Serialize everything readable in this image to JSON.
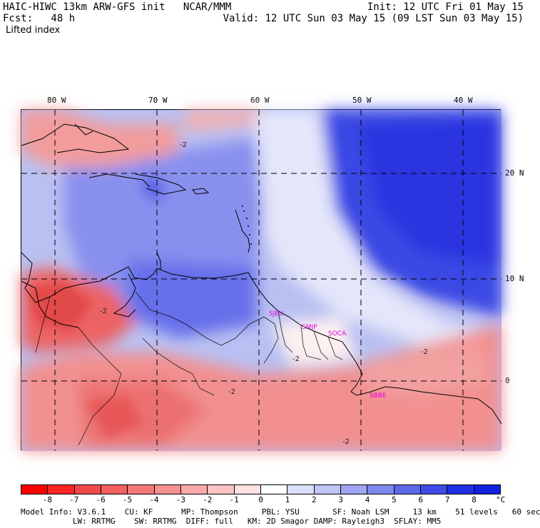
{
  "header": {
    "line1_left": "HAIC-HIWC 13km ARW-GFS init   NCAR/MMM",
    "line1_right": "Init: 12 UTC Fri 01 May 15",
    "line2_left": "Fcst:   48 h",
    "line2_right": "Valid: 12 UTC Sun 03 May 15 (09 LST Sun 03 May 15)",
    "field_name": "Lifted index"
  },
  "axes": {
    "lon_labels": [
      "80 W",
      "70 W",
      "60 W",
      "50 W",
      "40 W"
    ],
    "lat_labels": [
      "20 N",
      "10 N",
      "0"
    ]
  },
  "stations": [
    "SJEU",
    "SMJP",
    "SOCA",
    "SBBE"
  ],
  "contour_labels": [
    "-2",
    "-2",
    "-2",
    "-2",
    "-2",
    "-2"
  ],
  "colorbar": {
    "labels": [
      "-8",
      "-7",
      "-6",
      "-5",
      "-4",
      "-3",
      "-2",
      "-1",
      "0",
      "1",
      "2",
      "3",
      "4",
      "5",
      "6",
      "7",
      "8"
    ],
    "unit": "°C",
    "colors": [
      "#ff0000",
      "#ff2424",
      "#f24848",
      "#f26060",
      "#f27878",
      "#f59090",
      "#f8aaaa",
      "#fac4c4",
      "#fde2e2",
      "#ffffff",
      "#dde0fa",
      "#c0c5f5",
      "#9fa6f2",
      "#7f88ee",
      "#5e68ea",
      "#3f4ae6",
      "#2030e6",
      "#1020dd"
    ]
  },
  "footer": {
    "line1": "Model Info: V3.6.1    CU: KF      MP: Thompson     PBL: YSU       SF: Noah LSM     13 km    51 levels   60 sec",
    "line2": "           LW: RRTMG    SW: RRTMG  DIFF: full   KM: 2D Smagor DAMP: Rayleigh3  SFLAY: MM5"
  }
}
